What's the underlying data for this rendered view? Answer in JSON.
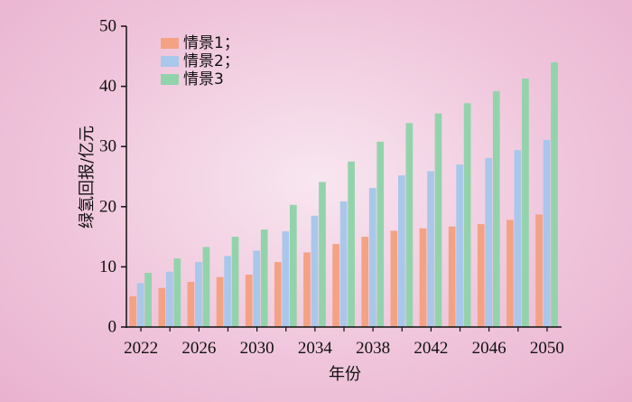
{
  "chart_data": {
    "type": "bar",
    "title": "",
    "xlabel": "年份",
    "ylabel": "绿氢回报/亿元",
    "ylim": [
      0,
      50
    ],
    "yticks": [
      "0",
      "10",
      "20",
      "30",
      "40",
      "50"
    ],
    "categories": [
      "2022",
      "2024",
      "2026",
      "2028",
      "2030",
      "2032",
      "2034",
      "2036",
      "2038",
      "2040",
      "2042",
      "2044",
      "2046",
      "2048",
      "2050"
    ],
    "xtick_labels": [
      "2022",
      "2026",
      "2030",
      "2034",
      "2038",
      "2042",
      "2046",
      "2050"
    ],
    "legend_position": "top-left",
    "series": [
      {
        "name": "情景1；",
        "color": "#f4a284",
        "values": [
          5.1,
          6.5,
          7.5,
          8.3,
          8.7,
          10.8,
          12.4,
          13.8,
          15.0,
          16.0,
          16.4,
          16.7,
          17.1,
          17.8,
          18.7
        ]
      },
      {
        "name": "情景2；",
        "color": "#a9c7ea",
        "values": [
          7.3,
          9.2,
          10.8,
          11.8,
          12.7,
          15.9,
          18.5,
          20.9,
          23.1,
          25.2,
          25.9,
          27.0,
          28.1,
          29.4,
          31.1
        ]
      },
      {
        "name": "情景3",
        "color": "#93d3ac",
        "values": [
          9.0,
          11.4,
          13.3,
          15.0,
          16.2,
          20.3,
          24.1,
          27.5,
          30.8,
          33.9,
          35.5,
          37.2,
          39.2,
          41.3,
          44.0
        ]
      }
    ]
  }
}
